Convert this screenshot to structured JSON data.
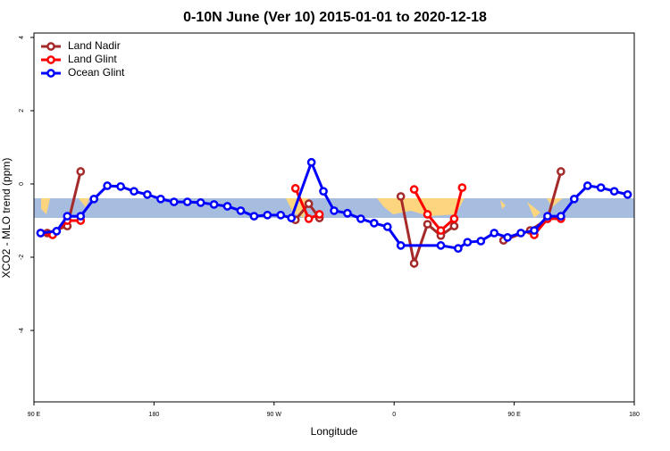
{
  "chart_data": {
    "type": "line",
    "title": "0-10N June (Ver 10)   2015-01-01 to 2020-12-18",
    "x_label": "Longitude",
    "y_label": "XCO2 - MLO trend (ppm)",
    "xlim": [
      90,
      540
    ],
    "xticks": [
      {
        "value": 90,
        "label": "90 E"
      },
      {
        "value": 180,
        "label": "180"
      },
      {
        "value": 270,
        "label": "90 W"
      },
      {
        "value": 360,
        "label": "0"
      },
      {
        "value": 450,
        "label": "90 E"
      },
      {
        "value": 540,
        "label": "180"
      }
    ],
    "ylim": [
      -5.95,
      4.12
    ],
    "yticks": [
      -4,
      -2,
      0,
      2,
      4
    ],
    "legend": "top-left",
    "series": [
      {
        "name": "Land Nadir",
        "color": "#a52a2a",
        "x": [
          100,
          115,
          125,
          200,
          286,
          296,
          304,
          330,
          365,
          375,
          385,
          395,
          405,
          420,
          442,
          462,
          475,
          485
        ],
        "values": [
          -1.34,
          -1.15,
          0.34,
          null,
          -0.98,
          -0.54,
          -0.93,
          null,
          -0.34,
          -2.17,
          -1.1,
          -1.41,
          -1.15,
          null,
          -1.54,
          -1.27,
          -0.95,
          0.34
        ]
      },
      {
        "name": "Land Glint",
        "color": "#ff0000",
        "x": [
          95,
          104,
          115,
          125,
          200,
          286,
          296,
          304,
          330,
          375,
          385,
          395,
          405,
          411,
          440,
          465,
          475,
          485
        ],
        "values": [
          -1.34,
          -1.39,
          -1.0,
          -1.0,
          null,
          -0.12,
          -0.95,
          -0.83,
          null,
          -0.15,
          -0.83,
          -1.27,
          -0.95,
          -0.1,
          null,
          -1.39,
          -0.95,
          -0.95
        ]
      },
      {
        "name": "Ocean Glint",
        "color": "#0000ff",
        "x": [
          95,
          107,
          115,
          125,
          135,
          145,
          155,
          165,
          175,
          185,
          195,
          205,
          215,
          225,
          235,
          245,
          255,
          265,
          275,
          283,
          298,
          307,
          315,
          325,
          335,
          345,
          355,
          365,
          395,
          408,
          415,
          425,
          435,
          445,
          455,
          465,
          475,
          485,
          495,
          505,
          515,
          525,
          535
        ],
        "values": [
          -1.34,
          -1.29,
          -0.88,
          -0.88,
          -0.41,
          -0.05,
          -0.07,
          -0.2,
          -0.29,
          -0.41,
          -0.49,
          -0.49,
          -0.51,
          -0.56,
          -0.61,
          -0.73,
          -0.88,
          -0.85,
          -0.85,
          -0.93,
          0.59,
          -0.2,
          -0.73,
          -0.8,
          -0.95,
          -1.07,
          -1.17,
          -1.68,
          -1.68,
          -1.76,
          -1.59,
          -1.56,
          -1.34,
          -1.46,
          -1.34,
          -1.27,
          -0.88,
          -0.88,
          -0.41,
          -0.05,
          -0.1,
          -0.2,
          -0.29
        ]
      }
    ]
  }
}
